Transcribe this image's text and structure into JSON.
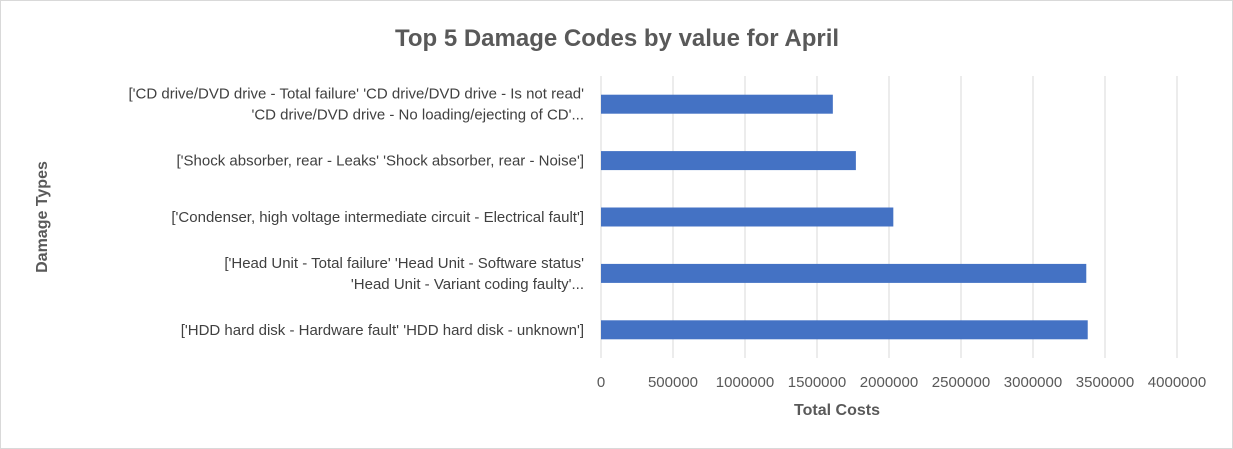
{
  "chart_data": {
    "type": "bar",
    "orientation": "horizontal",
    "title": "Top 5 Damage Codes by value for April",
    "xlabel": "Total Costs",
    "ylabel": "Damage Types",
    "xlim": [
      0,
      4000000
    ],
    "xticks": [
      "0",
      "500000",
      "1000000",
      "1500000",
      "2000000",
      "2500000",
      "3000000",
      "3500000",
      "4000000"
    ],
    "xtick_values": [
      0,
      500000,
      1000000,
      1500000,
      2000000,
      2500000,
      3000000,
      3500000,
      4000000
    ],
    "grid": true,
    "legend": "none",
    "bar_color": "#4472c4",
    "categories": [
      {
        "lines": [
          "['CD drive/DVD drive - Total failure' 'CD drive/DVD drive - Is not read'",
          "'CD drive/DVD drive - No loading/ejecting of CD'..."
        ],
        "value": 1610000
      },
      {
        "lines": [
          "['Shock absorber, rear - Leaks' 'Shock absorber, rear - Noise']"
        ],
        "value": 1770000
      },
      {
        "lines": [
          "['Condenser, high voltage intermediate circuit - Electrical fault']"
        ],
        "value": 2030000
      },
      {
        "lines": [
          "['Head Unit - Total failure' 'Head Unit - Software status'",
          "'Head Unit - Variant coding faulty'..."
        ],
        "value": 3370000
      },
      {
        "lines": [
          "['HDD hard disk - Hardware fault' 'HDD hard disk - unknown']"
        ],
        "value": 3380000
      }
    ]
  }
}
